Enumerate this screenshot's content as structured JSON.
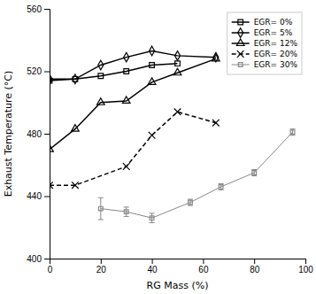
{
  "chart_data": {
    "type": "line",
    "xlabel": "RG Mass (%)",
    "ylabel": "Exhaust Temperature (°C)",
    "xlim": [
      0,
      100
    ],
    "ylim": [
      400,
      560
    ],
    "xticks": [
      0,
      20,
      40,
      60,
      80,
      100
    ],
    "yticks": [
      400,
      440,
      480,
      520,
      560
    ],
    "grid": false,
    "legend": "upper right",
    "series": [
      {
        "name": "EGR= 0%",
        "color": "black",
        "marker": "square",
        "line_style": "solid",
        "x": [
          0,
          10,
          20,
          30,
          40,
          50
        ],
        "values": [
          514,
          515,
          517,
          520,
          524,
          525
        ]
      },
      {
        "name": "EGR= 5%",
        "color": "black",
        "marker": "diamond",
        "line_style": "solid",
        "x": [
          0,
          10,
          20,
          30,
          40,
          50,
          65
        ],
        "values": [
          515,
          515,
          524,
          529,
          533,
          530,
          529
        ]
      },
      {
        "name": "EGR= 12%",
        "color": "black",
        "marker": "triangle",
        "line_style": "solid",
        "x": [
          0,
          10,
          20,
          30,
          40,
          50,
          65
        ],
        "values": [
          470,
          483,
          500,
          501,
          513,
          519,
          528
        ]
      },
      {
        "name": "EGR= 20%",
        "color": "black",
        "marker": "x",
        "line_style": "dashed",
        "x": [
          0,
          10,
          30,
          40,
          50,
          65
        ],
        "values": [
          447,
          447,
          459,
          479,
          494,
          487
        ]
      },
      {
        "name": "EGR= 30%",
        "color": "#888888",
        "marker": "square",
        "line_style": "solid",
        "x": [
          20,
          30,
          40,
          55,
          67,
          80,
          95
        ],
        "values": [
          432,
          430,
          426,
          436,
          446,
          455,
          481
        ],
        "errors": [
          7,
          3,
          3,
          2,
          2,
          2,
          2
        ]
      }
    ]
  }
}
